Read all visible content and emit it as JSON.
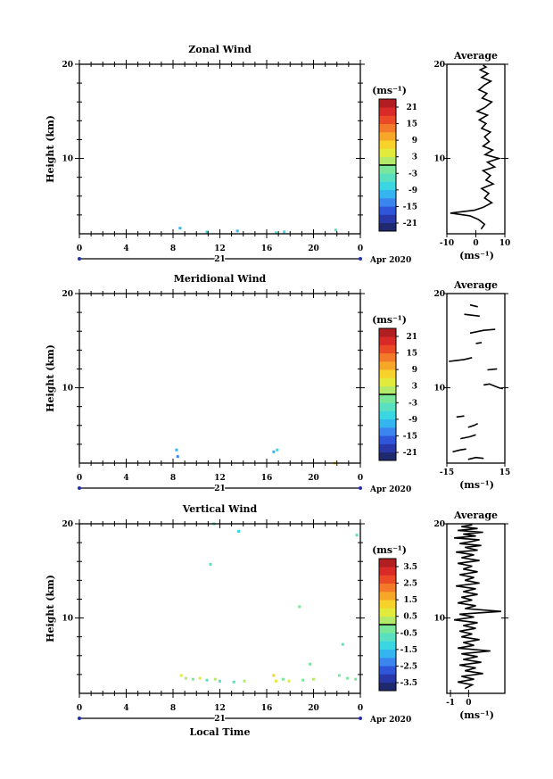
{
  "chart_data": [
    {
      "type": "heatmap",
      "title": "Zonal Wind",
      "ylabel": "Height (km)",
      "yticks": [
        "20",
        "10"
      ],
      "ylim": [
        2,
        20
      ],
      "xticks": [
        "0",
        "4",
        "8",
        "12",
        "16",
        "20",
        "0"
      ],
      "xlim": [
        0,
        24
      ],
      "day_label": "21",
      "date_label": "Apr 2020",
      "colorbar": {
        "unit_label": "(ms⁻¹)",
        "tick_labels": [
          "21",
          "15",
          "9",
          "3",
          "-3",
          "-9",
          "-15",
          "-21"
        ],
        "range": [
          -24,
          24
        ],
        "colors": [
          "#1f2a6e",
          "#2838a8",
          "#2f55d8",
          "#3a86ee",
          "#35b5f0",
          "#3ad6e2",
          "#58e0c0",
          "#7ae69a",
          "#b4ea6a",
          "#e2ea3c",
          "#f6d22a",
          "#f7a728",
          "#f27a28",
          "#ea4a26",
          "#d82a26",
          "#b01e22"
        ]
      },
      "points": [
        {
          "x": 8.6,
          "y": 2.6,
          "v": -12
        },
        {
          "x": 10.9,
          "y": 2.2,
          "v": -8
        },
        {
          "x": 13.5,
          "y": 2.3,
          "v": -12
        },
        {
          "x": 16.8,
          "y": 2.1,
          "v": -6
        },
        {
          "x": 17.5,
          "y": 2.2,
          "v": -7
        },
        {
          "x": 21.9,
          "y": 2.4,
          "v": -5
        }
      ],
      "average": {
        "title": "Average",
        "xlabel": "(ms⁻¹)",
        "xticks": [
          "-10",
          "0",
          "10"
        ],
        "xlim": [
          -10,
          10
        ],
        "yticks": [
          "20",
          "10"
        ],
        "ylim": [
          2,
          20
        ],
        "segments": [
          [
            [
              2.5,
              19.9
            ],
            [
              3.5,
              19.7
            ],
            [
              1.5,
              19.4
            ],
            [
              4.2,
              19.0
            ],
            [
              2.0,
              18.6
            ],
            [
              5.2,
              18.2
            ],
            [
              3.0,
              17.8
            ],
            [
              1.0,
              17.3
            ],
            [
              3.8,
              16.9
            ],
            [
              2.2,
              16.4
            ],
            [
              5.5,
              16.0
            ],
            [
              3.0,
              15.4
            ],
            [
              0.5,
              15.0
            ],
            [
              4.0,
              14.6
            ],
            [
              1.2,
              14.1
            ],
            [
              3.5,
              13.7
            ],
            [
              2.0,
              13.2
            ],
            [
              5.0,
              12.8
            ],
            [
              3.0,
              12.3
            ],
            [
              4.6,
              11.8
            ],
            [
              2.5,
              11.3
            ],
            [
              5.8,
              10.9
            ],
            [
              3.2,
              10.4
            ],
            [
              8.0,
              10.0
            ],
            [
              4.0,
              9.6
            ],
            [
              6.5,
              9.1
            ],
            [
              2.5,
              8.7
            ],
            [
              5.0,
              8.2
            ],
            [
              3.5,
              7.7
            ],
            [
              6.0,
              7.3
            ],
            [
              2.0,
              6.8
            ],
            [
              4.5,
              6.3
            ],
            [
              3.0,
              5.8
            ],
            [
              5.5,
              5.3
            ],
            [
              2.5,
              4.8
            ],
            [
              -0.5,
              4.5
            ],
            [
              -8.8,
              4.2
            ],
            [
              -2.0,
              3.9
            ],
            [
              1.0,
              3.5
            ],
            [
              3.0,
              3.0
            ],
            [
              1.8,
              2.5
            ]
          ]
        ]
      }
    },
    {
      "type": "heatmap",
      "title": "Meridional Wind",
      "ylabel": "Height (km)",
      "yticks": [
        "20",
        "10"
      ],
      "ylim": [
        2,
        20
      ],
      "xticks": [
        "0",
        "4",
        "8",
        "12",
        "16",
        "20",
        "0"
      ],
      "xlim": [
        0,
        24
      ],
      "day_label": "21",
      "date_label": "Apr 2020",
      "colorbar": {
        "unit_label": "(ms⁻¹)",
        "tick_labels": [
          "21",
          "15",
          "9",
          "3",
          "-3",
          "-9",
          "-15",
          "-21"
        ],
        "range": [
          -24,
          24
        ],
        "colors": [
          "#1f2a6e",
          "#2838a8",
          "#2f55d8",
          "#3a86ee",
          "#35b5f0",
          "#3ad6e2",
          "#58e0c0",
          "#7ae69a",
          "#b4ea6a",
          "#e2ea3c",
          "#f6d22a",
          "#f7a728",
          "#f27a28",
          "#ea4a26",
          "#d82a26",
          "#b01e22"
        ]
      },
      "points": [
        {
          "x": 8.3,
          "y": 3.4,
          "v": -10
        },
        {
          "x": 8.4,
          "y": 2.7,
          "v": -13
        },
        {
          "x": 16.6,
          "y": 3.2,
          "v": -12
        },
        {
          "x": 16.9,
          "y": 3.4,
          "v": -9
        },
        {
          "x": 21.8,
          "y": 2.0,
          "v": 6
        }
      ],
      "average": {
        "title": "Average",
        "xlabel": "(ms⁻¹)",
        "xticks": [
          "-15",
          "15"
        ],
        "xlim": [
          -15,
          15
        ],
        "yticks": [
          "20",
          "10"
        ],
        "ylim": [
          2,
          20
        ],
        "segments": [
          [
            [
              -3,
              18.8
            ],
            [
              1,
              18.6
            ]
          ],
          [
            [
              -6,
              17.8
            ],
            [
              2,
              17.6
            ]
          ],
          [
            [
              -3,
              15.8
            ],
            [
              4,
              16.1
            ],
            [
              10,
              16.2
            ]
          ],
          [
            [
              -14,
              12.8
            ],
            [
              -6,
              13.0
            ],
            [
              -2,
              13.2
            ]
          ],
          [
            [
              0,
              14.7
            ],
            [
              3,
              14.8
            ]
          ],
          [
            [
              6,
              11.9
            ],
            [
              11,
              12.0
            ]
          ],
          [
            [
              4,
              10.3
            ],
            [
              7,
              10.4
            ],
            [
              12,
              10.0
            ],
            [
              14,
              9.9
            ]
          ],
          [
            [
              -10,
              6.9
            ],
            [
              -6,
              7.0
            ]
          ],
          [
            [
              -4,
              5.8
            ],
            [
              -1,
              6.0
            ],
            [
              1,
              6.2
            ]
          ],
          [
            [
              -8,
              4.6
            ],
            [
              -3,
              4.8
            ],
            [
              0,
              5.0
            ]
          ],
          [
            [
              -12,
              3.2
            ],
            [
              -8,
              3.4
            ],
            [
              -5,
              3.5
            ]
          ],
          [
            [
              -4,
              2.4
            ],
            [
              0,
              2.6
            ],
            [
              4,
              2.5
            ]
          ]
        ]
      }
    },
    {
      "type": "heatmap",
      "title": "Vertical Wind",
      "ylabel": "Height (km)",
      "xlabel": "Local Time",
      "yticks": [
        "20",
        "10"
      ],
      "ylim": [
        2,
        20
      ],
      "xticks": [
        "0",
        "4",
        "8",
        "12",
        "16",
        "20",
        "0"
      ],
      "xlim": [
        0,
        24
      ],
      "day_label": "21",
      "date_label": "Apr 2020",
      "colorbar": {
        "unit_label": "(ms⁻¹)",
        "tick_labels": [
          "3.5",
          "2.5",
          "1.5",
          "0.5",
          "-0.5",
          "-1.5",
          "-2.5",
          "-3.5"
        ],
        "range": [
          -4,
          4
        ],
        "colors": [
          "#1f2a6e",
          "#2838a8",
          "#2f55d8",
          "#3a86ee",
          "#35b5f0",
          "#3ad6e2",
          "#58e0c0",
          "#7ae69a",
          "#b4ea6a",
          "#e2ea3c",
          "#f6d22a",
          "#f7a728",
          "#f27a28",
          "#ea4a26",
          "#d82a26",
          "#b01e22"
        ]
      },
      "points": [
        {
          "x": 11.5,
          "y": 20.0,
          "v": -0.8
        },
        {
          "x": 13.6,
          "y": 19.2,
          "v": -1.2
        },
        {
          "x": 23.7,
          "y": 18.8,
          "v": -0.9
        },
        {
          "x": 11.2,
          "y": 15.7,
          "v": -1.0
        },
        {
          "x": 18.8,
          "y": 11.2,
          "v": -0.4
        },
        {
          "x": 22.5,
          "y": 7.2,
          "v": -0.7
        },
        {
          "x": 19.7,
          "y": 5.1,
          "v": -0.2
        },
        {
          "x": 22.2,
          "y": 3.9,
          "v": -0.5
        },
        {
          "x": 8.7,
          "y": 3.9,
          "v": 0.9
        },
        {
          "x": 9.1,
          "y": 3.6,
          "v": 0.1
        },
        {
          "x": 9.7,
          "y": 3.5,
          "v": -0.3
        },
        {
          "x": 10.3,
          "y": 3.6,
          "v": 0.5
        },
        {
          "x": 10.9,
          "y": 3.4,
          "v": -0.6
        },
        {
          "x": 11.6,
          "y": 3.5,
          "v": 0.3
        },
        {
          "x": 12.0,
          "y": 3.3,
          "v": -1.0
        },
        {
          "x": 13.2,
          "y": 3.2,
          "v": -0.9
        },
        {
          "x": 14.1,
          "y": 3.3,
          "v": 0.2
        },
        {
          "x": 16.6,
          "y": 3.9,
          "v": 1.2
        },
        {
          "x": 16.8,
          "y": 3.3,
          "v": 0.8
        },
        {
          "x": 17.4,
          "y": 3.5,
          "v": -0.5
        },
        {
          "x": 17.9,
          "y": 3.3,
          "v": 0.6
        },
        {
          "x": 19.1,
          "y": 3.4,
          "v": -0.4
        },
        {
          "x": 20.0,
          "y": 3.5,
          "v": 0.2
        },
        {
          "x": 22.9,
          "y": 3.6,
          "v": -0.2
        },
        {
          "x": 23.6,
          "y": 3.5,
          "v": -0.3
        }
      ],
      "average": {
        "title": "Average",
        "xlabel": "(ms⁻¹)",
        "xticks": [
          "-1",
          "0"
        ],
        "xlim": [
          -1.2,
          2.0
        ],
        "yticks": [
          "20",
          "10"
        ],
        "ylim": [
          2,
          20
        ],
        "segments": [
          [
            [
              0.2,
              19.9
            ],
            [
              -0.4,
              19.7
            ],
            [
              0.5,
              19.5
            ],
            [
              -0.6,
              19.3
            ],
            [
              0.8,
              19.1
            ],
            [
              -0.3,
              18.9
            ],
            [
              0.4,
              18.7
            ],
            [
              -0.8,
              18.5
            ],
            [
              0.6,
              18.3
            ],
            [
              0.1,
              18.1
            ],
            [
              -0.5,
              17.9
            ],
            [
              0.7,
              17.7
            ],
            [
              -0.2,
              17.5
            ],
            [
              0.5,
              17.2
            ],
            [
              -0.7,
              17.0
            ],
            [
              0.3,
              16.7
            ],
            [
              -0.4,
              16.4
            ],
            [
              0.6,
              16.1
            ],
            [
              -0.6,
              15.8
            ],
            [
              0.2,
              15.5
            ],
            [
              -0.3,
              15.2
            ],
            [
              0.5,
              14.9
            ],
            [
              -0.5,
              14.6
            ],
            [
              0.3,
              14.3
            ],
            [
              -0.2,
              14.0
            ],
            [
              0.6,
              13.7
            ],
            [
              -0.7,
              13.4
            ],
            [
              0.4,
              13.1
            ],
            [
              -0.3,
              12.8
            ],
            [
              0.5,
              12.5
            ],
            [
              -0.4,
              12.2
            ],
            [
              0.2,
              11.9
            ],
            [
              -0.6,
              11.6
            ],
            [
              0.4,
              11.3
            ],
            [
              -0.2,
              11.0
            ],
            [
              1.8,
              10.7
            ],
            [
              -0.5,
              10.4
            ],
            [
              0.3,
              10.1
            ],
            [
              -0.8,
              9.8
            ],
            [
              0.5,
              9.5
            ],
            [
              -0.3,
              9.2
            ],
            [
              0.4,
              8.9
            ],
            [
              -0.5,
              8.6
            ],
            [
              0.2,
              8.3
            ],
            [
              -0.4,
              8.0
            ],
            [
              0.6,
              7.7
            ],
            [
              -0.3,
              7.4
            ],
            [
              0.3,
              7.1
            ],
            [
              -0.6,
              6.8
            ],
            [
              1.2,
              6.5
            ],
            [
              -0.4,
              6.2
            ],
            [
              0.5,
              5.9
            ],
            [
              -0.3,
              5.6
            ],
            [
              0.7,
              5.3
            ],
            [
              -0.5,
              5.0
            ],
            [
              0.4,
              4.7
            ],
            [
              -0.2,
              4.4
            ],
            [
              0.8,
              4.1
            ],
            [
              -0.4,
              3.8
            ],
            [
              0.3,
              3.5
            ],
            [
              -0.6,
              3.2
            ],
            [
              0.2,
              2.9
            ],
            [
              -0.2,
              2.5
            ]
          ]
        ]
      }
    }
  ]
}
